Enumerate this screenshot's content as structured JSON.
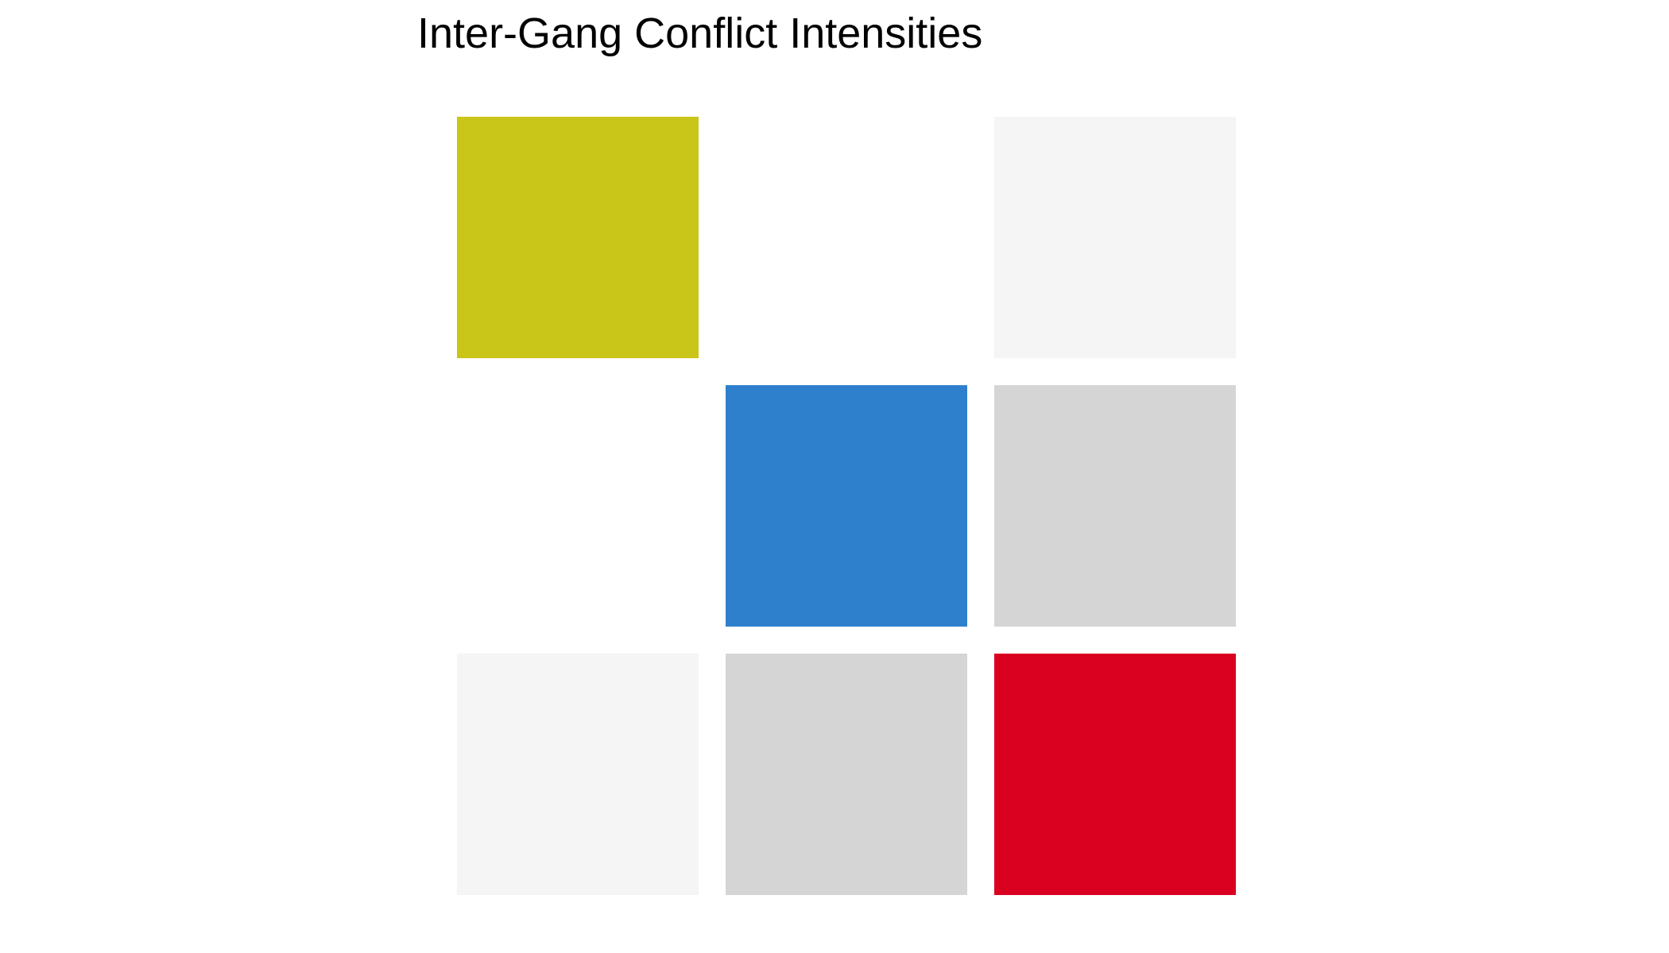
{
  "chart_data": {
    "type": "heatmap",
    "title": "Inter-Gang Conflict Intensities",
    "xlabel": "",
    "ylabel": "",
    "rows": 3,
    "cols": 3,
    "cells": [
      {
        "row": 0,
        "col": 0,
        "color": "#CAC519"
      },
      {
        "row": 0,
        "col": 1,
        "color": "#FFFFFF"
      },
      {
        "row": 0,
        "col": 2,
        "color": "#F5F5F5"
      },
      {
        "row": 1,
        "col": 0,
        "color": "#FFFFFF"
      },
      {
        "row": 1,
        "col": 1,
        "color": "#2E80CD"
      },
      {
        "row": 1,
        "col": 2,
        "color": "#D5D5D5"
      },
      {
        "row": 2,
        "col": 0,
        "color": "#F5F5F5"
      },
      {
        "row": 2,
        "col": 1,
        "color": "#D5D5D5"
      },
      {
        "row": 2,
        "col": 2,
        "color": "#DA0020"
      }
    ]
  }
}
